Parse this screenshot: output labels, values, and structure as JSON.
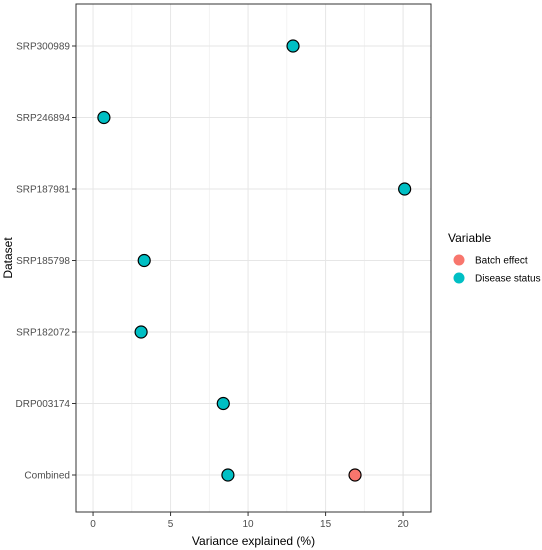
{
  "chart_data": {
    "type": "scatter",
    "xlabel": "Variance explained (%)",
    "ylabel": "Dataset",
    "xlim": [
      -1.1,
      21.8
    ],
    "x_ticks": [
      0,
      5,
      10,
      15,
      20
    ],
    "x_tick_labels": [
      "0",
      "5",
      "10",
      "15",
      "20"
    ],
    "categories": [
      "SRP300989",
      "SRP246894",
      "SRP187981",
      "SRP185798",
      "SRP182072",
      "DRP003174",
      "Combined"
    ],
    "grid": true,
    "legend": {
      "title": "Variable",
      "placement": "right",
      "entries": [
        {
          "label": "Batch effect",
          "color": "#F8766D"
        },
        {
          "label": "Disease status",
          "color": "#00BFC4"
        }
      ]
    },
    "series": [
      {
        "name": "Batch effect",
        "color": "#F8766D",
        "points": [
          {
            "dataset": "Combined",
            "x": 16.9
          }
        ]
      },
      {
        "name": "Disease status",
        "color": "#00BFC4",
        "points": [
          {
            "dataset": "SRP300989",
            "x": 12.9
          },
          {
            "dataset": "SRP246894",
            "x": 0.7
          },
          {
            "dataset": "SRP187981",
            "x": 20.1
          },
          {
            "dataset": "SRP185798",
            "x": 3.3
          },
          {
            "dataset": "SRP182072",
            "x": 3.1
          },
          {
            "dataset": "DRP003174",
            "x": 8.4
          },
          {
            "dataset": "Combined",
            "x": 8.7
          }
        ]
      }
    ]
  }
}
